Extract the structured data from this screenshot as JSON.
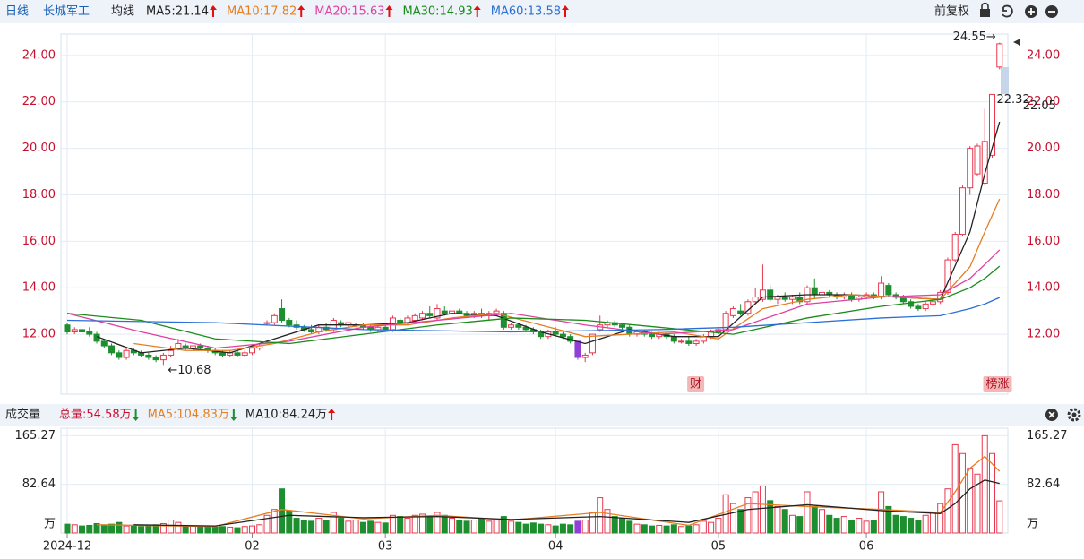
{
  "header": {
    "period": "日线",
    "stock": "长城军工",
    "ma_title": "均线",
    "adjust": "前复权"
  },
  "chart_data": [
    {
      "type": "candlestick",
      "ylim": [
        9.42,
        24.92
      ],
      "yticks": [
        {
          "value": 12,
          "label": "12.00"
        },
        {
          "value": 14,
          "label": "14.00"
        },
        {
          "value": 16,
          "label": "16.00"
        },
        {
          "value": 18,
          "label": "18.00"
        },
        {
          "value": 20,
          "label": "20.00"
        },
        {
          "value": 22,
          "label": "22.00"
        },
        {
          "value": 24,
          "label": "24.00"
        }
      ],
      "up_color": "#e8384f",
      "down_color": "#1d8f2f",
      "special": {
        "index": 69,
        "color": "#9040d8"
      },
      "candles": [
        [
          12.4,
          12.5,
          12.0,
          12.1
        ],
        [
          12.1,
          12.3,
          12.0,
          12.2
        ],
        [
          12.2,
          12.3,
          12.0,
          12.1
        ],
        [
          12.1,
          12.3,
          11.9,
          12.0
        ],
        [
          12.0,
          12.1,
          11.6,
          11.7
        ],
        [
          11.7,
          11.8,
          11.4,
          11.5
        ],
        [
          11.5,
          11.6,
          11.1,
          11.2
        ],
        [
          11.2,
          11.3,
          10.9,
          11.0
        ],
        [
          11.0,
          11.4,
          10.9,
          11.3
        ],
        [
          11.3,
          11.4,
          11.1,
          11.2
        ],
        [
          11.2,
          11.3,
          11.0,
          11.1
        ],
        [
          11.1,
          11.2,
          10.9,
          11.0
        ],
        [
          11.0,
          11.1,
          10.8,
          10.9
        ],
        [
          10.9,
          11.2,
          10.68,
          11.1
        ],
        [
          11.1,
          11.5,
          11.0,
          11.3
        ],
        [
          11.4,
          11.8,
          11.3,
          11.6
        ],
        [
          11.5,
          11.6,
          11.3,
          11.4
        ],
        [
          11.4,
          11.5,
          11.3,
          11.5
        ],
        [
          11.5,
          11.6,
          11.3,
          11.4
        ],
        [
          11.4,
          11.5,
          11.2,
          11.3
        ],
        [
          11.3,
          11.4,
          11.1,
          11.2
        ],
        [
          11.2,
          11.3,
          11.0,
          11.1
        ],
        [
          11.1,
          11.3,
          11.0,
          11.2
        ],
        [
          11.2,
          11.3,
          11.0,
          11.1
        ],
        [
          11.1,
          11.3,
          11.0,
          11.2
        ],
        [
          11.2,
          11.5,
          11.1,
          11.4
        ],
        [
          11.4,
          11.6,
          11.3,
          11.5
        ],
        [
          12.5,
          12.6,
          12.4,
          12.5
        ],
        [
          12.5,
          12.9,
          12.4,
          12.8
        ],
        [
          13.1,
          13.5,
          12.5,
          12.6
        ],
        [
          12.6,
          12.7,
          12.3,
          12.4
        ],
        [
          12.4,
          12.6,
          12.2,
          12.3
        ],
        [
          12.3,
          12.4,
          12.1,
          12.2
        ],
        [
          12.2,
          12.4,
          12.0,
          12.1
        ],
        [
          12.1,
          12.4,
          12.0,
          12.3
        ],
        [
          12.3,
          12.5,
          12.1,
          12.2
        ],
        [
          12.2,
          12.7,
          12.1,
          12.6
        ],
        [
          12.5,
          12.6,
          12.3,
          12.4
        ],
        [
          12.4,
          12.5,
          12.3,
          12.5
        ],
        [
          12.4,
          12.5,
          12.3,
          12.4
        ],
        [
          12.4,
          12.5,
          12.2,
          12.3
        ],
        [
          12.3,
          12.4,
          12.1,
          12.2
        ],
        [
          12.2,
          12.4,
          12.1,
          12.3
        ],
        [
          12.3,
          12.4,
          12.1,
          12.2
        ],
        [
          12.2,
          12.8,
          12.1,
          12.7
        ],
        [
          12.6,
          12.7,
          12.4,
          12.5
        ],
        [
          12.5,
          12.8,
          12.4,
          12.7
        ],
        [
          12.6,
          12.9,
          12.5,
          12.8
        ],
        [
          12.7,
          13.0,
          12.6,
          12.9
        ],
        [
          12.9,
          13.2,
          12.7,
          12.8
        ],
        [
          12.7,
          13.3,
          12.6,
          13.1
        ],
        [
          13.0,
          13.2,
          12.8,
          12.9
        ],
        [
          12.9,
          13.0,
          12.8,
          13.0
        ],
        [
          13.0,
          13.1,
          12.9,
          12.9
        ],
        [
          12.9,
          13.0,
          12.7,
          12.8
        ],
        [
          12.8,
          13.0,
          12.7,
          12.9
        ],
        [
          12.9,
          13.1,
          12.7,
          12.8
        ],
        [
          12.8,
          13.0,
          12.6,
          12.9
        ],
        [
          12.9,
          13.1,
          12.8,
          13.0
        ],
        [
          12.9,
          13.0,
          12.2,
          12.3
        ],
        [
          12.3,
          12.5,
          12.2,
          12.4
        ],
        [
          12.4,
          12.5,
          12.2,
          12.3
        ],
        [
          12.3,
          12.4,
          12.1,
          12.2
        ],
        [
          12.2,
          12.3,
          12.0,
          12.1
        ],
        [
          12.1,
          12.2,
          11.8,
          11.9
        ],
        [
          11.9,
          12.2,
          11.8,
          12.1
        ],
        [
          12.1,
          12.3,
          11.9,
          12.0
        ],
        [
          12.0,
          12.1,
          11.8,
          11.9
        ],
        [
          11.9,
          12.0,
          11.6,
          11.7
        ],
        [
          11.7,
          11.7,
          10.9,
          11.0
        ],
        [
          11.0,
          11.2,
          10.8,
          11.1
        ],
        [
          11.2,
          12.0,
          11.1,
          12.0
        ],
        [
          12.2,
          12.8,
          12.1,
          12.4
        ],
        [
          12.4,
          12.6,
          12.3,
          12.5
        ],
        [
          12.5,
          12.6,
          12.3,
          12.4
        ],
        [
          12.4,
          12.5,
          12.2,
          12.3
        ],
        [
          12.3,
          12.4,
          11.9,
          12.0
        ],
        [
          12.0,
          12.1,
          11.9,
          12.1
        ],
        [
          12.1,
          12.2,
          11.9,
          12.0
        ],
        [
          12.0,
          12.1,
          11.8,
          11.9
        ],
        [
          11.9,
          12.1,
          11.8,
          12.0
        ],
        [
          12.0,
          12.1,
          11.8,
          11.9
        ],
        [
          11.9,
          12.0,
          11.6,
          11.7
        ],
        [
          11.7,
          11.8,
          11.6,
          11.7
        ],
        [
          11.7,
          11.9,
          11.5,
          11.6
        ],
        [
          11.6,
          11.8,
          11.5,
          11.7
        ],
        [
          11.7,
          12.0,
          11.6,
          11.9
        ],
        [
          11.9,
          12.2,
          11.8,
          12.1
        ],
        [
          12.1,
          12.3,
          12.0,
          12.2
        ],
        [
          12.2,
          13.0,
          12.1,
          12.9
        ],
        [
          12.8,
          13.2,
          12.7,
          13.1
        ],
        [
          13.0,
          13.3,
          12.8,
          12.9
        ],
        [
          12.9,
          13.5,
          12.8,
          13.4
        ],
        [
          13.4,
          14.0,
          13.3,
          13.6
        ],
        [
          13.5,
          15.0,
          13.4,
          13.9
        ],
        [
          13.9,
          14.1,
          13.4,
          13.5
        ],
        [
          13.5,
          13.7,
          13.3,
          13.6
        ],
        [
          13.6,
          13.8,
          13.4,
          13.5
        ],
        [
          13.5,
          13.7,
          13.3,
          13.6
        ],
        [
          13.6,
          13.8,
          13.3,
          13.4
        ],
        [
          13.4,
          14.1,
          13.3,
          14.0
        ],
        [
          14.0,
          14.4,
          13.5,
          13.7
        ],
        [
          13.7,
          14.0,
          13.6,
          13.8
        ],
        [
          13.8,
          13.9,
          13.6,
          13.7
        ],
        [
          13.7,
          13.8,
          13.5,
          13.6
        ],
        [
          13.6,
          13.8,
          13.5,
          13.7
        ],
        [
          13.7,
          13.8,
          13.4,
          13.5
        ],
        [
          13.5,
          13.7,
          13.4,
          13.6
        ],
        [
          13.6,
          13.8,
          13.5,
          13.7
        ],
        [
          13.7,
          13.8,
          13.5,
          13.6
        ],
        [
          13.6,
          14.5,
          13.5,
          14.2
        ],
        [
          14.1,
          14.2,
          13.6,
          13.7
        ],
        [
          13.7,
          13.8,
          13.5,
          13.6
        ],
        [
          13.6,
          13.7,
          13.3,
          13.4
        ],
        [
          13.4,
          13.5,
          13.1,
          13.2
        ],
        [
          13.2,
          13.3,
          13.0,
          13.1
        ],
        [
          13.1,
          13.4,
          13.0,
          13.3
        ],
        [
          13.3,
          13.5,
          13.2,
          13.4
        ],
        [
          13.4,
          13.9,
          13.3,
          13.8
        ],
        [
          13.8,
          15.3,
          13.7,
          15.2
        ],
        [
          15.2,
          16.4,
          15.1,
          16.3
        ],
        [
          16.3,
          18.4,
          16.2,
          18.3
        ],
        [
          18.3,
          20.1,
          18.0,
          20.0
        ],
        [
          18.9,
          20.2,
          18.8,
          20.1
        ],
        [
          18.5,
          21.7,
          18.4,
          20.3
        ],
        [
          19.7,
          22.32,
          19.6,
          22.32
        ],
        [
          23.5,
          24.55,
          23.4,
          24.5
        ]
      ],
      "series": [
        {
          "name": "MA5:21.14",
          "color": "#222222",
          "trend": "up",
          "x": [
            4,
            10,
            16,
            22,
            28,
            34,
            40,
            46,
            52,
            58,
            64,
            70,
            76,
            82,
            88,
            94,
            100,
            106,
            112,
            118,
            122,
            124,
            126
          ],
          "values": [
            11.9,
            11.2,
            11.4,
            11.2,
            11.8,
            12.4,
            12.4,
            12.5,
            12.9,
            12.8,
            12.1,
            11.6,
            12.2,
            11.9,
            11.9,
            13.6,
            13.7,
            13.7,
            13.6,
            13.5,
            16.4,
            18.9,
            21.14
          ]
        },
        {
          "name": "MA10:17.82",
          "color": "#e67e22",
          "trend": "up",
          "x": [
            9,
            16,
            22,
            28,
            34,
            40,
            46,
            52,
            58,
            64,
            70,
            76,
            82,
            88,
            94,
            100,
            106,
            112,
            118,
            122,
            124,
            126
          ],
          "values": [
            11.6,
            11.3,
            11.3,
            11.6,
            12.1,
            12.4,
            12.4,
            12.7,
            12.9,
            12.4,
            11.9,
            12.0,
            12.1,
            11.8,
            13.1,
            13.5,
            13.7,
            13.6,
            13.5,
            14.9,
            16.4,
            17.82
          ]
        },
        {
          "name": "MA20:15.63",
          "color": "#e040a0",
          "trend": "up",
          "x": [
            0,
            10,
            20,
            30,
            40,
            50,
            60,
            70,
            80,
            90,
            100,
            110,
            118,
            122,
            124,
            126
          ],
          "values": [
            12.9,
            12.1,
            11.4,
            11.7,
            12.3,
            12.6,
            12.9,
            12.4,
            12.0,
            12.2,
            13.3,
            13.6,
            13.7,
            14.4,
            15.0,
            15.63
          ]
        },
        {
          "name": "MA30:14.93",
          "color": "#1a8c1a",
          "trend": "up",
          "x": [
            0,
            10,
            20,
            30,
            40,
            50,
            60,
            70,
            80,
            90,
            100,
            110,
            118,
            122,
            124,
            126
          ],
          "values": [
            12.9,
            12.6,
            11.8,
            11.6,
            12.0,
            12.4,
            12.7,
            12.6,
            12.3,
            12.0,
            12.7,
            13.2,
            13.5,
            14.0,
            14.4,
            14.93
          ]
        },
        {
          "name": "MA60:13.58",
          "color": "#2b6fd6",
          "trend": "up",
          "x": [
            0,
            20,
            40,
            60,
            80,
            90,
            100,
            110,
            118,
            122,
            124,
            126
          ],
          "values": [
            12.6,
            12.5,
            12.2,
            12.1,
            12.2,
            12.3,
            12.5,
            12.7,
            12.8,
            13.1,
            13.3,
            13.58
          ]
        }
      ],
      "annotations": [
        {
          "text": "24.55→",
          "index": 126,
          "value": 24.55,
          "side": "left"
        },
        {
          "text": "←10.68",
          "index": 13,
          "value": 10.68,
          "side": "right"
        },
        {
          "text": "22.32",
          "index": 125,
          "value": 22.32,
          "side": "right"
        },
        {
          "text": "22.05",
          "index": 125,
          "value": 22.05,
          "side": "right"
        }
      ],
      "markers": [
        {
          "text": "财",
          "index": 85
        },
        {
          "text": "榜涨",
          "index": 125
        }
      ]
    },
    {
      "type": "bar",
      "title": "成交量",
      "total": {
        "label": "总量:54.58万",
        "trend": "down"
      },
      "ylim": [
        0,
        178
      ],
      "yticks": [
        {
          "value": 0,
          "label": "万"
        },
        82.64,
        165.27
      ],
      "xticks": [
        {
          "value": 0,
          "label": "2024-12"
        },
        {
          "value": 25,
          "label": "02"
        },
        {
          "value": 43,
          "label": "03"
        },
        {
          "value": 66,
          "label": "04"
        },
        {
          "value": 88,
          "label": "05"
        },
        {
          "value": 108,
          "label": "06"
        }
      ],
      "values": [
        15,
        14,
        12,
        13,
        16,
        14,
        15,
        18,
        12,
        13,
        11,
        12,
        14,
        16,
        22,
        18,
        13,
        12,
        11,
        12,
        10,
        11,
        10,
        9,
        11,
        12,
        14,
        30,
        40,
        75,
        38,
        25,
        22,
        20,
        25,
        22,
        35,
        25,
        20,
        22,
        18,
        20,
        18,
        17,
        30,
        28,
        25,
        30,
        32,
        28,
        35,
        30,
        25,
        22,
        20,
        22,
        25,
        20,
        22,
        28,
        20,
        18,
        15,
        17,
        15,
        14,
        12,
        15,
        14,
        20,
        22,
        35,
        60,
        40,
        28,
        25,
        20,
        15,
        14,
        12,
        13,
        12,
        14,
        11,
        12,
        14,
        20,
        18,
        25,
        65,
        50,
        40,
        60,
        70,
        80,
        55,
        45,
        40,
        30,
        28,
        70,
        45,
        40,
        30,
        25,
        28,
        22,
        25,
        20,
        22,
        70,
        45,
        30,
        28,
        25,
        22,
        30,
        35,
        50,
        75,
        150,
        135,
        110,
        100,
        165.27,
        135,
        54.58
      ],
      "series": [
        {
          "name": "MA5:104.83万",
          "color": "#e67e22",
          "trend": "down",
          "x": [
            4,
            20,
            29,
            40,
            50,
            60,
            72,
            84,
            92,
            100,
            110,
            118,
            120,
            122,
            124,
            126
          ],
          "values": [
            14,
            11,
            40,
            24,
            30,
            22,
            35,
            13,
            50,
            45,
            40,
            35,
            70,
            110,
            130,
            104.83
          ]
        },
        {
          "name": "MA10:84.24万",
          "color": "#222222",
          "trend": "up",
          "x": [
            9,
            20,
            30,
            40,
            50,
            60,
            72,
            84,
            92,
            100,
            110,
            118,
            120,
            122,
            124,
            126
          ],
          "values": [
            14,
            12,
            30,
            26,
            28,
            23,
            28,
            18,
            40,
            48,
            38,
            33,
            50,
            75,
            90,
            84.24
          ]
        }
      ]
    }
  ]
}
